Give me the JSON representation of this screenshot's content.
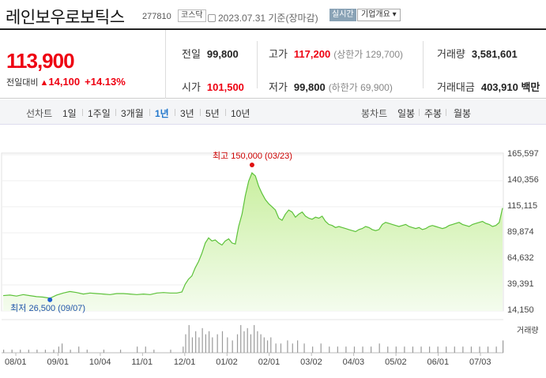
{
  "header": {
    "name": "레인보우로보틱스",
    "code": "277810",
    "market": "코스닥",
    "date": "2023.07.31 기준(장마감)",
    "realtime_label": "실시간",
    "company_label": "기업개요 ▾"
  },
  "quote": {
    "price": "113,900",
    "change_label": "전일대비",
    "change_arrow": "▲",
    "change": "14,100",
    "change_pct": "+14.13%",
    "prev_close_label": "전일",
    "prev_close": "99,800",
    "high_label": "고가",
    "high": "117,200",
    "upper_limit": "(상한가 129,700)",
    "volume_label": "거래량",
    "volume": "3,581,601",
    "open_label": "시가",
    "open": "101,500",
    "low_label": "저가",
    "low": "99,800",
    "lower_limit": "(하한가 69,900)",
    "amount_label": "거래대금",
    "amount": "403,910 백만"
  },
  "periods": {
    "line_label": "선차트",
    "items": [
      "1일",
      "1주일",
      "3개월",
      "1년",
      "3년",
      "5년",
      "10년"
    ],
    "active": "1년",
    "candle_label": "봉차트",
    "candle_items": [
      "일봉",
      "주봉",
      "월봉"
    ]
  },
  "chart_data": {
    "type": "area",
    "colors": {
      "line": "#5dc23a",
      "fill": "#e6f7da",
      "high": "#e01010",
      "low": "#2060d0",
      "volume": "#9a9a9a"
    },
    "y_ticks": [
      "165,597",
      "140,356",
      "115,115",
      "89,874",
      "64,632",
      "39,391",
      "14,150"
    ],
    "ylim": [
      14150,
      165597
    ],
    "x_ticks": [
      "08/01",
      "09/01",
      "10/04",
      "11/01",
      "12/01",
      "01/02",
      "02/01",
      "03/02",
      "04/03",
      "05/02",
      "06/01",
      "07/03"
    ],
    "high_label": "최고 150,000 (03/23)",
    "low_label": "최저 26,500 (09/07)",
    "volume_label": "거래량",
    "price_series": [
      [
        0,
        29000
      ],
      [
        8,
        29500
      ],
      [
        16,
        28500
      ],
      [
        24,
        30000
      ],
      [
        32,
        29000
      ],
      [
        40,
        28000
      ],
      [
        48,
        27500
      ],
      [
        56,
        26500
      ],
      [
        64,
        29500
      ],
      [
        72,
        31500
      ],
      [
        80,
        33000
      ],
      [
        88,
        32000
      ],
      [
        96,
        30500
      ],
      [
        104,
        31500
      ],
      [
        112,
        31000
      ],
      [
        120,
        30500
      ],
      [
        128,
        30000
      ],
      [
        136,
        31000
      ],
      [
        144,
        31000
      ],
      [
        152,
        30500
      ],
      [
        160,
        30000
      ],
      [
        168,
        30500
      ],
      [
        176,
        30000
      ],
      [
        184,
        31500
      ],
      [
        192,
        32000
      ],
      [
        200,
        31500
      ],
      [
        208,
        31500
      ],
      [
        214,
        32500
      ],
      [
        218,
        40000
      ],
      [
        222,
        45000
      ],
      [
        226,
        48000
      ],
      [
        230,
        56000
      ],
      [
        234,
        62000
      ],
      [
        238,
        70000
      ],
      [
        242,
        80000
      ],
      [
        246,
        85000
      ],
      [
        250,
        82000
      ],
      [
        254,
        83000
      ],
      [
        258,
        80000
      ],
      [
        262,
        78000
      ],
      [
        266,
        82000
      ],
      [
        270,
        84000
      ],
      [
        274,
        80000
      ],
      [
        278,
        79000
      ],
      [
        282,
        96000
      ],
      [
        286,
        108000
      ],
      [
        290,
        126000
      ],
      [
        294,
        140000
      ],
      [
        298,
        148000
      ],
      [
        302,
        145000
      ],
      [
        306,
        135000
      ],
      [
        310,
        128000
      ],
      [
        314,
        122000
      ],
      [
        318,
        118000
      ],
      [
        322,
        115000
      ],
      [
        326,
        112000
      ],
      [
        330,
        104000
      ],
      [
        334,
        102000
      ],
      [
        338,
        108000
      ],
      [
        342,
        112000
      ],
      [
        346,
        110000
      ],
      [
        350,
        105000
      ],
      [
        354,
        108000
      ],
      [
        358,
        110000
      ],
      [
        362,
        106000
      ],
      [
        366,
        104000
      ],
      [
        370,
        103000
      ],
      [
        374,
        105000
      ],
      [
        378,
        104000
      ],
      [
        382,
        106000
      ],
      [
        386,
        101000
      ],
      [
        390,
        98000
      ],
      [
        394,
        97000
      ],
      [
        398,
        95000
      ],
      [
        402,
        96000
      ],
      [
        406,
        95000
      ],
      [
        410,
        94000
      ],
      [
        414,
        93000
      ],
      [
        418,
        92000
      ],
      [
        422,
        91000
      ],
      [
        426,
        93000
      ],
      [
        430,
        94000
      ],
      [
        434,
        96000
      ],
      [
        438,
        95000
      ],
      [
        442,
        93000
      ],
      [
        446,
        92000
      ],
      [
        450,
        93000
      ],
      [
        454,
        98000
      ],
      [
        458,
        100000
      ],
      [
        462,
        99000
      ],
      [
        466,
        98000
      ],
      [
        470,
        97000
      ],
      [
        474,
        96000
      ],
      [
        478,
        97000
      ],
      [
        482,
        98000
      ],
      [
        486,
        96000
      ],
      [
        490,
        95000
      ],
      [
        494,
        94000
      ],
      [
        498,
        95000
      ],
      [
        502,
        93000
      ],
      [
        506,
        94000
      ],
      [
        510,
        96000
      ],
      [
        514,
        97000
      ],
      [
        518,
        96000
      ],
      [
        522,
        95000
      ],
      [
        526,
        94000
      ],
      [
        530,
        95000
      ],
      [
        534,
        97000
      ],
      [
        538,
        98000
      ],
      [
        542,
        99000
      ],
      [
        546,
        100000
      ],
      [
        550,
        98000
      ],
      [
        554,
        97000
      ],
      [
        558,
        96000
      ],
      [
        562,
        98000
      ],
      [
        566,
        99000
      ],
      [
        570,
        100000
      ],
      [
        574,
        101000
      ],
      [
        578,
        99000
      ],
      [
        582,
        98000
      ],
      [
        586,
        96000
      ],
      [
        590,
        97000
      ],
      [
        594,
        99800
      ],
      [
        598,
        113900
      ]
    ],
    "volume_series": [
      [
        0,
        1
      ],
      [
        10,
        1
      ],
      [
        20,
        1
      ],
      [
        30,
        1
      ],
      [
        40,
        1
      ],
      [
        50,
        1
      ],
      [
        60,
        1
      ],
      [
        66,
        2
      ],
      [
        70,
        3
      ],
      [
        80,
        1
      ],
      [
        90,
        2
      ],
      [
        100,
        1
      ],
      [
        120,
        1
      ],
      [
        140,
        1
      ],
      [
        160,
        2
      ],
      [
        170,
        2
      ],
      [
        180,
        1
      ],
      [
        200,
        1
      ],
      [
        215,
        2
      ],
      [
        218,
        6
      ],
      [
        222,
        9
      ],
      [
        226,
        5
      ],
      [
        230,
        7
      ],
      [
        234,
        5
      ],
      [
        238,
        8
      ],
      [
        242,
        6
      ],
      [
        246,
        7
      ],
      [
        250,
        5
      ],
      [
        256,
        6
      ],
      [
        262,
        7
      ],
      [
        268,
        5
      ],
      [
        274,
        4
      ],
      [
        280,
        6
      ],
      [
        284,
        9
      ],
      [
        288,
        7
      ],
      [
        292,
        8
      ],
      [
        296,
        6
      ],
      [
        300,
        9
      ],
      [
        304,
        7
      ],
      [
        308,
        6
      ],
      [
        312,
        5
      ],
      [
        316,
        4
      ],
      [
        320,
        5
      ],
      [
        326,
        3
      ],
      [
        332,
        3
      ],
      [
        340,
        4
      ],
      [
        346,
        3
      ],
      [
        352,
        4
      ],
      [
        360,
        3
      ],
      [
        370,
        2
      ],
      [
        380,
        3
      ],
      [
        390,
        2
      ],
      [
        400,
        2
      ],
      [
        410,
        2
      ],
      [
        420,
        2
      ],
      [
        430,
        2
      ],
      [
        440,
        2
      ],
      [
        450,
        3
      ],
      [
        460,
        2
      ],
      [
        470,
        2
      ],
      [
        480,
        2
      ],
      [
        490,
        2
      ],
      [
        500,
        2
      ],
      [
        510,
        2
      ],
      [
        520,
        2
      ],
      [
        530,
        2
      ],
      [
        540,
        2
      ],
      [
        550,
        2
      ],
      [
        560,
        2
      ],
      [
        570,
        2
      ],
      [
        580,
        2
      ],
      [
        590,
        2
      ],
      [
        598,
        4
      ]
    ]
  }
}
